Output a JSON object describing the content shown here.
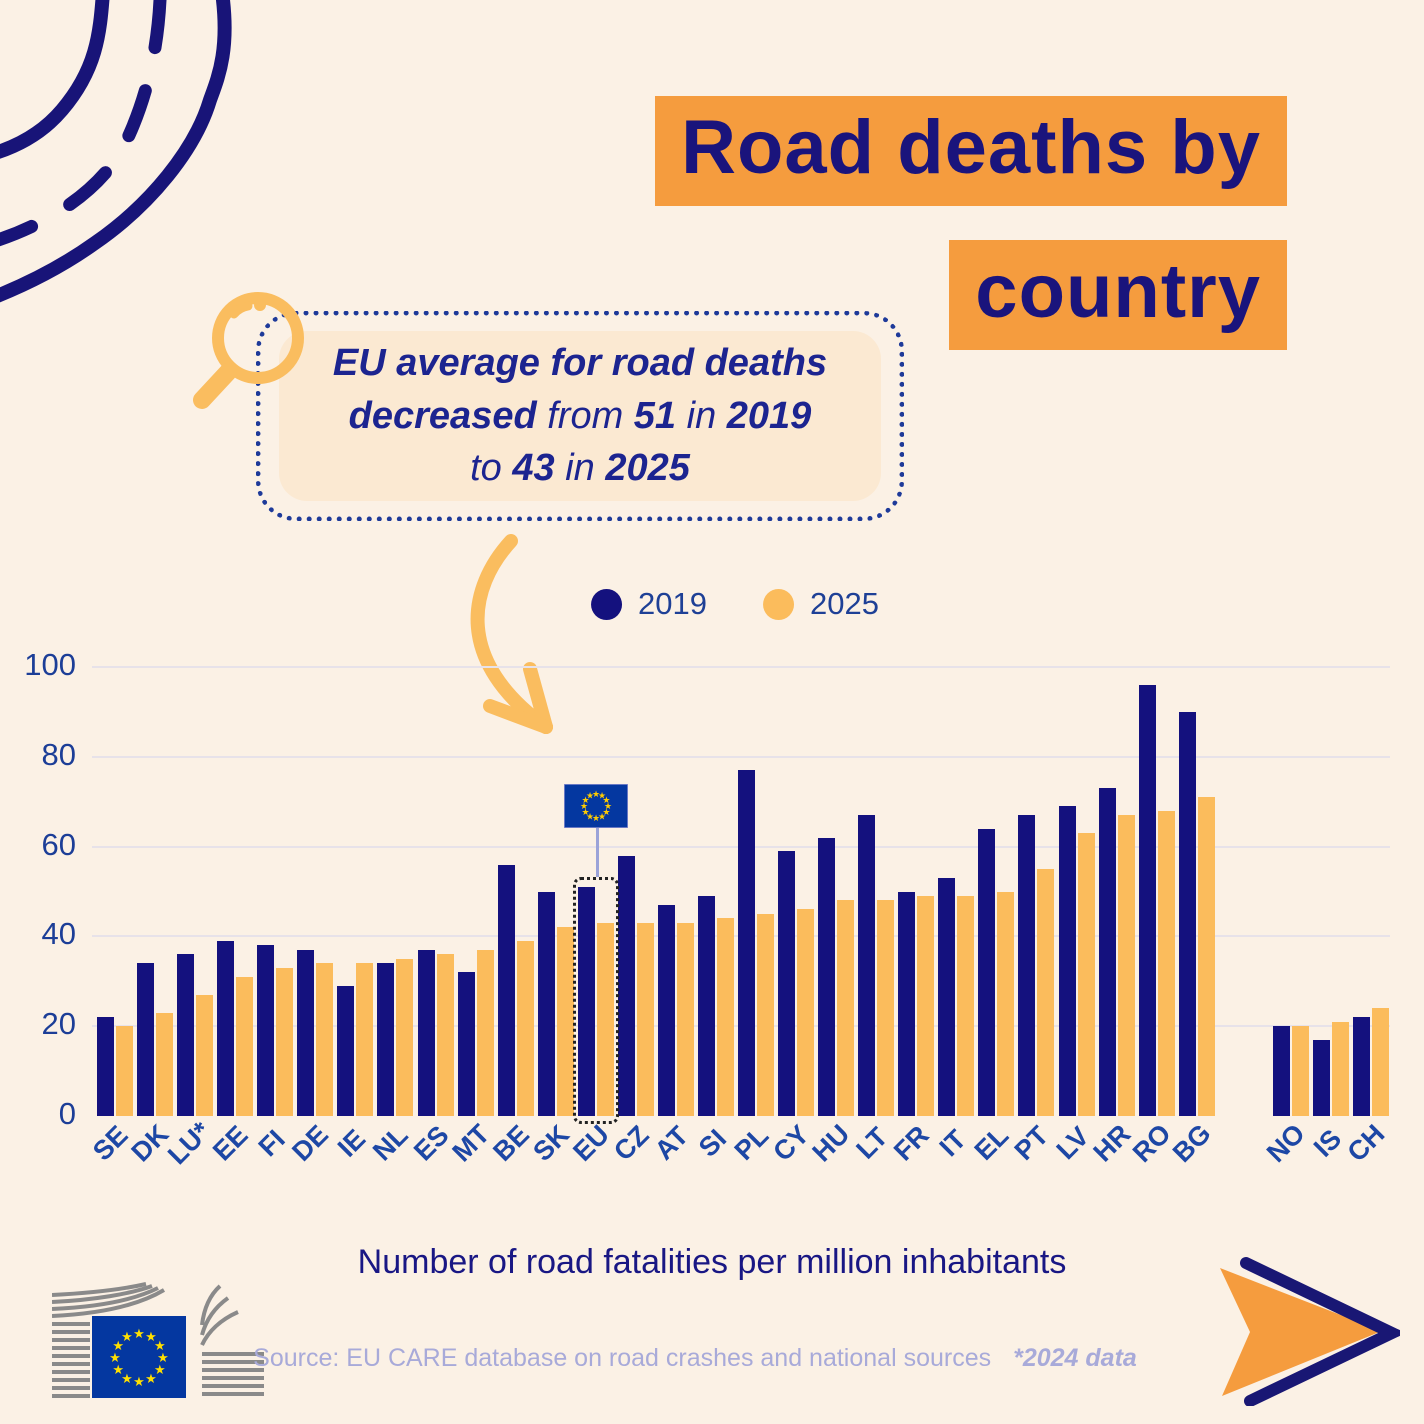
{
  "page": {
    "background": "#FBF1E5"
  },
  "title": {
    "line1": "Road deaths by",
    "line2": "country",
    "highlight_color": "#F59C3E",
    "text_color": "#1A147C"
  },
  "callout": {
    "line1": "EU average for road deaths",
    "l2_bold1": "decreased",
    "l2_t1": " from ",
    "l2_bold2": "51",
    "l2_t2": " in ",
    "l2_bold3": "2019",
    "l3_t1": "to ",
    "l3_bold1": "43",
    "l3_t2": " in ",
    "l3_bold2": "2025"
  },
  "caption": "Number of road fatalities per million inhabitants",
  "source": {
    "text": "Source: EU CARE database on road crashes and national sources",
    "note": "*2024 data"
  },
  "chart_data": {
    "type": "bar",
    "title": "Road deaths by country",
    "ylabel": "Number of road fatalities per million inhabitants",
    "ylim": [
      0,
      100
    ],
    "yticks": [
      0,
      20,
      40,
      60,
      80,
      100
    ],
    "grid": true,
    "legend_position": "top",
    "highlight": "EU",
    "group_break_after": "BG",
    "categories": [
      "SE",
      "DK",
      "LU*",
      "EE",
      "FI",
      "DE",
      "IE",
      "NL",
      "ES",
      "MT",
      "BE",
      "SK",
      "EU",
      "CZ",
      "AT",
      "SI",
      "PL",
      "CY",
      "HU",
      "LT",
      "FR",
      "IT",
      "EL",
      "PT",
      "LV",
      "HR",
      "RO",
      "BG",
      "NO",
      "IS",
      "CH"
    ],
    "series": [
      {
        "name": "2019",
        "color": "#14117E",
        "values": [
          22,
          34,
          36,
          39,
          38,
          37,
          29,
          34,
          37,
          32,
          56,
          50,
          51,
          58,
          47,
          49,
          77,
          59,
          62,
          67,
          50,
          53,
          64,
          67,
          69,
          73,
          96,
          90,
          20,
          17,
          22
        ]
      },
      {
        "name": "2025",
        "color": "#FBBC5C",
        "values": [
          20,
          23,
          27,
          31,
          33,
          34,
          34,
          35,
          36,
          37,
          39,
          42,
          43,
          43,
          43,
          44,
          45,
          46,
          48,
          48,
          49,
          49,
          50,
          55,
          63,
          67,
          68,
          71,
          20,
          21,
          24
        ]
      }
    ]
  },
  "colors": {
    "navy": "#14117E",
    "orange_light": "#FBBC5C",
    "orange_deep": "#F59C3E",
    "background": "#FBF1E5",
    "callout_fill": "#FBE9D2",
    "gridline": "#E7E2E9",
    "axis_text": "#1C3E97",
    "source_text": "#A8AAD9",
    "eu_flag_blue": "#0437A0",
    "eu_flag_stars": "#FFCC00"
  }
}
